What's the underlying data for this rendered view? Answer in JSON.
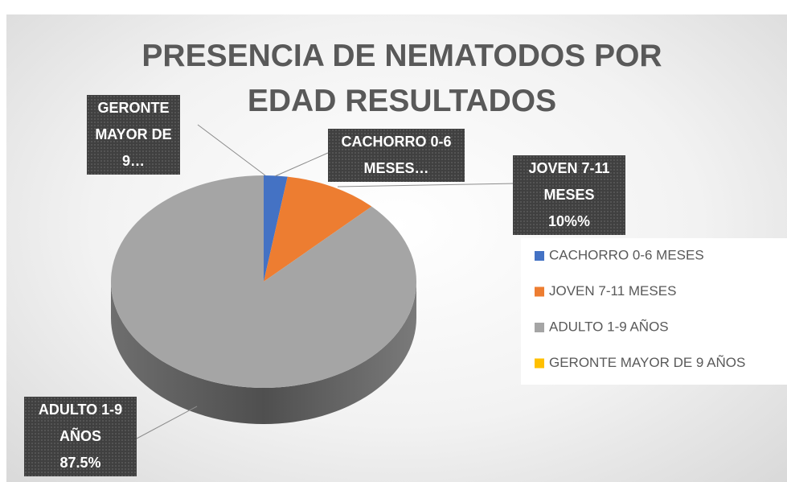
{
  "chart_data": {
    "type": "pie3d",
    "title": "PRESENCIA DE NEMATODOS POR EDAD RESULTADOS",
    "categories": [
      "CACHORRO 0-6 MESES",
      "JOVEN 7-11 MESES",
      "ADULTO 1-9 AÑOS",
      "GERONTE MAYOR DE 9 AÑOS"
    ],
    "values": [
      2.5,
      10,
      87.5,
      0
    ],
    "data_labels": [
      "CACHORRO 0-6 MESES…",
      "JOVEN 7-11 MESES",
      "ADULTO 1-9 AÑOS",
      "GERONTE MAYOR DE 9…"
    ],
    "value_labels": [
      null,
      "10%%",
      "87.5%",
      null
    ],
    "colors": [
      "#4472c4",
      "#ed7d31",
      "#a5a5a5",
      "#ffc000"
    ],
    "legend": "right"
  }
}
